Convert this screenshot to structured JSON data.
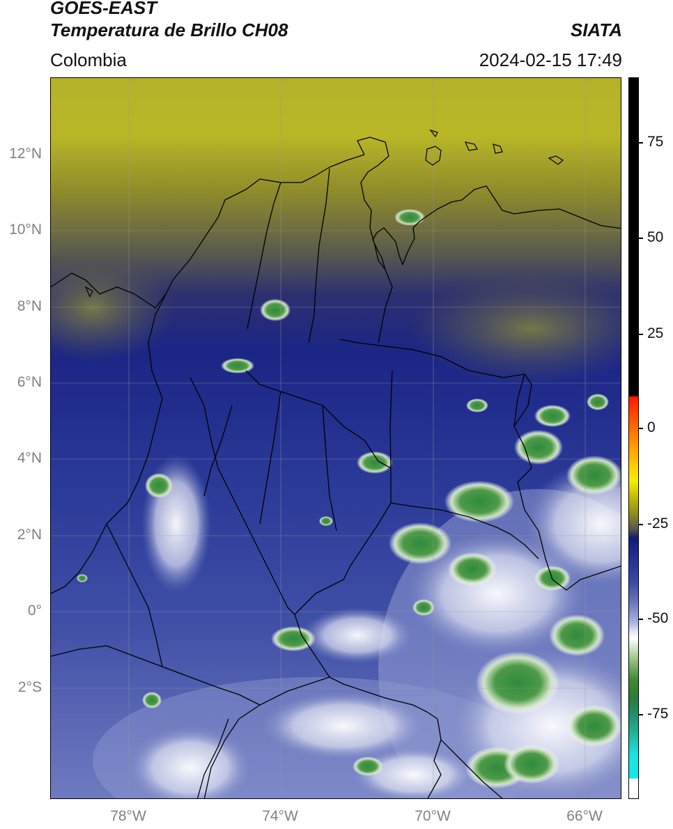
{
  "header": {
    "title_line1": "GOES-EAST",
    "title_line2": "Temperatura de Brillo CH08",
    "region": "Colombia",
    "brand": "SIATA",
    "timestamp": "2024-02-15 17:49"
  },
  "map": {
    "lat_labels": [
      "12°N",
      "10°N",
      "8°N",
      "6°N",
      "4°N",
      "2°N",
      "0°",
      "2°S"
    ],
    "lon_labels": [
      "78°W",
      "74°W",
      "70°W",
      "66°W"
    ],
    "gridlines": true,
    "extent": {
      "lon_min": -80.0,
      "lon_max": -65.0,
      "lat_min": -5.0,
      "lat_max": 14.0
    }
  },
  "colorbar": {
    "labels": [
      "75",
      "50",
      "25",
      "0",
      "-25",
      "-50",
      "-75"
    ],
    "range": [
      -95,
      90
    ],
    "colors": {
      "warm": "#000000",
      "hot": "#ff1500",
      "yellow": "#f3ee00",
      "olive": "#8f8c1e",
      "navy": "#111b7a",
      "white": "#ffffff",
      "green": "#3f8a33",
      "cyan": "#12e8e8"
    }
  }
}
